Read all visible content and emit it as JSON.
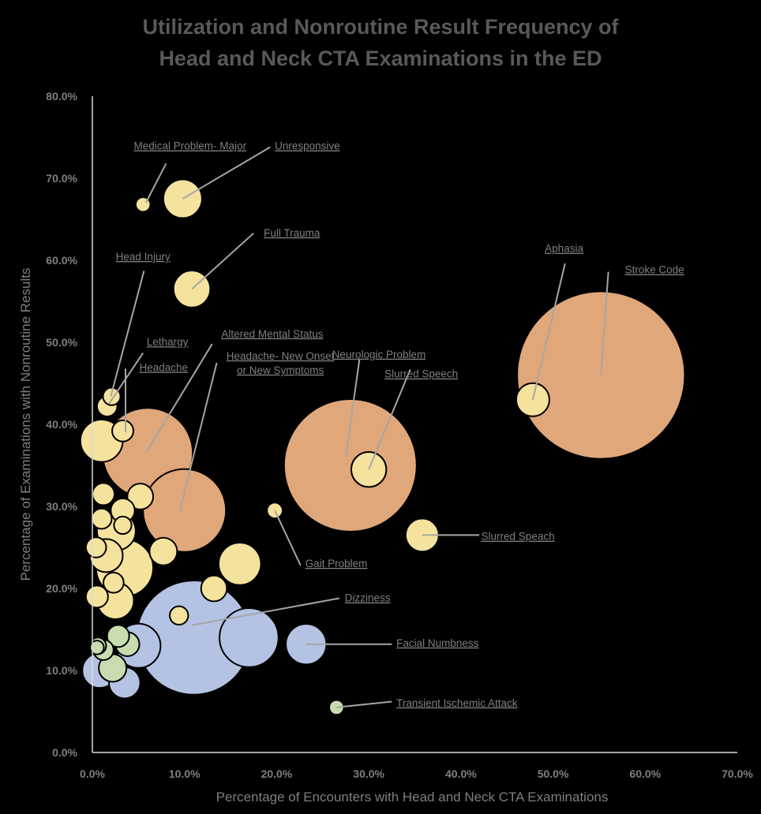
{
  "chart_data": {
    "type": "scatter",
    "title_line1": "Utilization and Nonroutine Result Frequency of",
    "title_line2": "Head and Neck CTA Examinations in the ED",
    "xlabel": "Percentage of Encounters with Head and Neck CTA Examinations",
    "ylabel": "Percentage of Examinations with Nonroutine Results",
    "xlim": [
      0,
      70
    ],
    "ylim": [
      0,
      80
    ],
    "x_ticks": [
      "0.0%",
      "10.0%",
      "20.0%",
      "30.0%",
      "40.0%",
      "50.0%",
      "60.0%",
      "70.0%"
    ],
    "y_ticks": [
      "0.0%",
      "10.0%",
      "20.0%",
      "30.0%",
      "40.0%",
      "50.0%",
      "60.0%",
      "70.0%",
      "80.0%"
    ],
    "grid": false,
    "colors": {
      "orange": "#e0a77a",
      "yellow": "#f5e29d",
      "blue": "#b4c2e3",
      "green": "#c7ddb0",
      "outline": "#000000",
      "leader": "#a6a6a6",
      "text": "#7f7f7f"
    },
    "points": [
      {
        "x": 55.2,
        "y": 46.0,
        "size": 9.1,
        "color": "orange"
      },
      {
        "x": 28.0,
        "y": 35.0,
        "size": 7.2,
        "color": "orange"
      },
      {
        "x": 11.0,
        "y": 14.0,
        "size": 6.2,
        "color": "blue"
      },
      {
        "x": 6.0,
        "y": 36.5,
        "size": 4.9,
        "color": "orange"
      },
      {
        "x": 10.0,
        "y": 29.5,
        "size": 4.5,
        "color": "orange"
      },
      {
        "x": 17.0,
        "y": 14.0,
        "size": 3.2,
        "color": "blue"
      },
      {
        "x": 3.5,
        "y": 22.5,
        "size": 3.1,
        "color": "yellow"
      },
      {
        "x": 5.0,
        "y": 13.0,
        "size": 2.4,
        "color": "blue"
      },
      {
        "x": 0.8,
        "y": 10.0,
        "size": 1.9,
        "color": "blue"
      },
      {
        "x": 23.2,
        "y": 13.2,
        "size": 2.2,
        "color": "blue"
      },
      {
        "x": 16.0,
        "y": 23.0,
        "size": 2.3,
        "color": "yellow"
      },
      {
        "x": 30.0,
        "y": 34.5,
        "size": 1.9,
        "color": "yellow"
      },
      {
        "x": 47.8,
        "y": 43.0,
        "size": 1.8,
        "color": "yellow"
      },
      {
        "x": 9.8,
        "y": 67.5,
        "size": 2.1,
        "color": "yellow"
      },
      {
        "x": 10.8,
        "y": 56.5,
        "size": 2.0,
        "color": "yellow"
      },
      {
        "x": 35.8,
        "y": 26.5,
        "size": 1.8,
        "color": "yellow"
      },
      {
        "x": 1.0,
        "y": 38.0,
        "size": 2.3,
        "color": "yellow"
      },
      {
        "x": 2.6,
        "y": 27.0,
        "size": 2.1,
        "color": "yellow"
      },
      {
        "x": 2.5,
        "y": 18.5,
        "size": 2.0,
        "color": "yellow"
      },
      {
        "x": 1.5,
        "y": 24.0,
        "size": 1.8,
        "color": "yellow"
      },
      {
        "x": 3.5,
        "y": 8.5,
        "size": 1.7,
        "color": "blue"
      },
      {
        "x": 2.2,
        "y": 10.3,
        "size": 1.5,
        "color": "green"
      },
      {
        "x": 3.8,
        "y": 13.2,
        "size": 1.3,
        "color": "green"
      },
      {
        "x": 2.8,
        "y": 14.2,
        "size": 1.2,
        "color": "green"
      },
      {
        "x": 1.2,
        "y": 12.5,
        "size": 1.1,
        "color": "green"
      },
      {
        "x": 0.6,
        "y": 13.0,
        "size": 0.9,
        "color": "green"
      },
      {
        "x": 0.5,
        "y": 12.8,
        "size": 0.75,
        "color": "green"
      },
      {
        "x": 26.5,
        "y": 5.5,
        "size": 0.8,
        "color": "green"
      },
      {
        "x": 7.7,
        "y": 24.5,
        "size": 1.5,
        "color": "yellow"
      },
      {
        "x": 13.2,
        "y": 20.0,
        "size": 1.4,
        "color": "yellow"
      },
      {
        "x": 5.2,
        "y": 31.2,
        "size": 1.4,
        "color": "yellow"
      },
      {
        "x": 3.3,
        "y": 29.5,
        "size": 1.3,
        "color": "yellow"
      },
      {
        "x": 1.2,
        "y": 31.5,
        "size": 1.2,
        "color": "yellow"
      },
      {
        "x": 1.0,
        "y": 28.5,
        "size": 1.1,
        "color": "yellow"
      },
      {
        "x": 3.3,
        "y": 27.7,
        "size": 0.95,
        "color": "yellow"
      },
      {
        "x": 0.4,
        "y": 25.0,
        "size": 1.1,
        "color": "yellow"
      },
      {
        "x": 0.5,
        "y": 19.0,
        "size": 1.2,
        "color": "yellow"
      },
      {
        "x": 2.3,
        "y": 20.7,
        "size": 1.1,
        "color": "yellow"
      },
      {
        "x": 1.6,
        "y": 42.2,
        "size": 1.1,
        "color": "yellow"
      },
      {
        "x": 2.1,
        "y": 43.4,
        "size": 0.95,
        "color": "yellow"
      },
      {
        "x": 3.3,
        "y": 39.2,
        "size": 1.15,
        "color": "yellow"
      },
      {
        "x": 5.5,
        "y": 66.8,
        "size": 0.8,
        "color": "yellow"
      },
      {
        "x": 9.4,
        "y": 16.7,
        "size": 1.0,
        "color": "yellow"
      },
      {
        "x": 19.8,
        "y": 29.5,
        "size": 0.85,
        "color": "yellow"
      }
    ],
    "annotations": [
      {
        "lines": [
          "Medical Problem- Major"
        ],
        "x": 10.6,
        "y": 73.5,
        "anchor": "middle",
        "from": [
          5.8,
          67.0
        ],
        "to": [
          8.0,
          71.8
        ]
      },
      {
        "lines": [
          "Unresponsive"
        ],
        "x": 19.8,
        "y": 73.5,
        "anchor": "start",
        "from": [
          9.8,
          67.5
        ],
        "to": [
          19.3,
          73.8
        ]
      },
      {
        "lines": [
          "Full Trauma"
        ],
        "x": 18.6,
        "y": 62.9,
        "anchor": "start",
        "from": [
          10.8,
          56.5
        ],
        "to": [
          17.5,
          63.3
        ]
      },
      {
        "lines": [
          "Head Injury"
        ],
        "x": 5.5,
        "y": 60.0,
        "anchor": "middle",
        "from": [
          2.0,
          43.4
        ],
        "to": [
          5.6,
          58.7
        ]
      },
      {
        "lines": [
          "Lethargy"
        ],
        "x": 5.9,
        "y": 49.6,
        "anchor": "start",
        "from": [
          1.8,
          42.5
        ],
        "to": [
          5.5,
          48.7
        ]
      },
      {
        "lines": [
          "Headache"
        ],
        "x": 5.1,
        "y": 46.5,
        "anchor": "start",
        "from": [
          3.6,
          39.0
        ],
        "to": [
          3.6,
          46.8
        ]
      },
      {
        "lines": [
          "Altered Mental Status"
        ],
        "x": 14.0,
        "y": 50.6,
        "anchor": "start",
        "from": [
          5.8,
          36.5
        ],
        "to": [
          13.0,
          49.8
        ]
      },
      {
        "lines": [
          "Headache- New Onset",
          "or New Symptoms"
        ],
        "x": 20.4,
        "y": 47.9,
        "anchor": "middle",
        "from": [
          9.5,
          29.5
        ],
        "to": [
          13.5,
          47.5
        ]
      },
      {
        "lines": [
          "Neurologic Problem"
        ],
        "x": 31.1,
        "y": 48.1,
        "anchor": "middle",
        "from": [
          27.5,
          36.0
        ],
        "to": [
          29.0,
          48.0
        ]
      },
      {
        "lines": [
          "Slurred Speech"
        ],
        "x": 35.7,
        "y": 45.7,
        "anchor": "middle",
        "from": [
          30.0,
          34.5
        ],
        "to": [
          34.5,
          46.7
        ]
      },
      {
        "lines": [
          "Aphasia"
        ],
        "x": 51.2,
        "y": 61.0,
        "anchor": "middle",
        "from": [
          47.8,
          43.0
        ],
        "to": [
          51.3,
          59.6
        ]
      },
      {
        "lines": [
          "Stroke Code"
        ],
        "x": 57.8,
        "y": 58.4,
        "anchor": "start",
        "from": [
          55.2,
          46.0
        ],
        "to": [
          56.0,
          58.6
        ]
      },
      {
        "lines": [
          "Slurred Speach"
        ],
        "x": 42.2,
        "y": 25.9,
        "anchor": "start",
        "from": [
          35.8,
          26.5
        ],
        "to": [
          42.0,
          26.5
        ]
      },
      {
        "lines": [
          "Gait Problem"
        ],
        "x": 23.1,
        "y": 22.6,
        "anchor": "start",
        "from": [
          19.8,
          29.5
        ],
        "to": [
          22.6,
          22.8
        ]
      },
      {
        "lines": [
          "Dizziness"
        ],
        "x": 27.4,
        "y": 18.4,
        "anchor": "start",
        "from": [
          10.8,
          15.5
        ],
        "to": [
          26.8,
          18.8
        ]
      },
      {
        "lines": [
          "Facial Numbness"
        ],
        "x": 33.0,
        "y": 12.9,
        "anchor": "start",
        "from": [
          23.2,
          13.2
        ],
        "to": [
          32.5,
          13.2
        ]
      },
      {
        "lines": [
          "Transient Ischemic Attack"
        ],
        "x": 33.0,
        "y": 5.6,
        "anchor": "start",
        "from": [
          26.5,
          5.5
        ],
        "to": [
          32.5,
          6.2
        ]
      }
    ]
  }
}
